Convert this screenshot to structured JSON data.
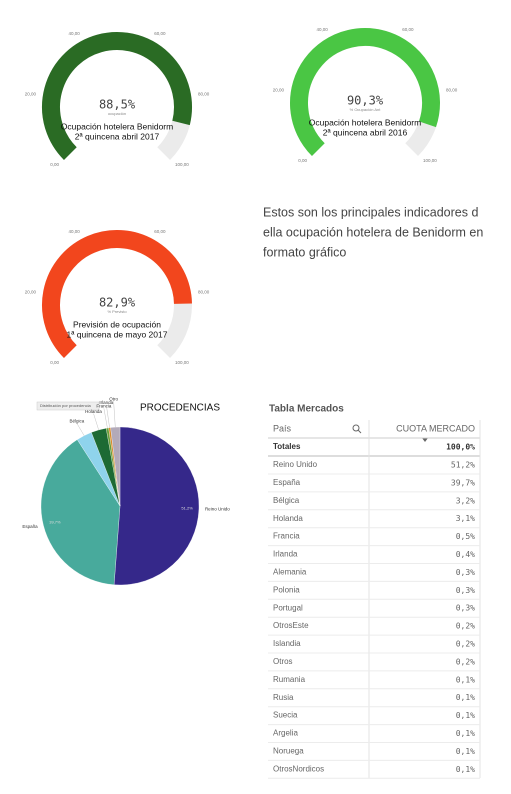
{
  "chart_data": [
    {
      "type": "gauge",
      "title": [
        "Ocupación hotelera Benidorm",
        "2ª quincena abril 2017"
      ],
      "subtitle": "ocupación",
      "value": 88.5,
      "value_label": "88,5%",
      "color": "#2a6b24",
      "track_color": "#ebebeb",
      "ylim": [
        0,
        100
      ],
      "yticks": [
        {
          "value": 0,
          "label": "0,00"
        },
        {
          "value": 20,
          "label": "20,00"
        },
        {
          "value": 40,
          "label": "40,00"
        },
        {
          "value": 60,
          "label": "60,00"
        },
        {
          "value": 80,
          "label": "80,00"
        },
        {
          "value": 100,
          "label": "100,00"
        }
      ]
    },
    {
      "type": "gauge",
      "title": [
        "Ocupación hotelera Benidorm",
        "2ª quincena abril 2016"
      ],
      "subtitle": "% Ocupación Ant",
      "value": 90.3,
      "value_label": "90,3%",
      "color": "#4ac644",
      "track_color": "#ebebeb",
      "ylim": [
        0,
        100
      ],
      "yticks": [
        {
          "value": 0,
          "label": "0,00"
        },
        {
          "value": 20,
          "label": "20,00"
        },
        {
          "value": 40,
          "label": "40,00"
        },
        {
          "value": 60,
          "label": "60,00"
        },
        {
          "value": 80,
          "label": "80,00"
        },
        {
          "value": 100,
          "label": "100,00"
        }
      ]
    },
    {
      "type": "gauge",
      "title": [
        "Previsión de ocupación",
        "1ª quincena de mayo 2017"
      ],
      "subtitle": "% Previsto",
      "value": 82.9,
      "value_label": "82,9%",
      "color": "#f2461d",
      "track_color": "#ebebeb",
      "ylim": [
        0,
        100
      ],
      "yticks": [
        {
          "value": 0,
          "label": "0,00"
        },
        {
          "value": 20,
          "label": "20,00"
        },
        {
          "value": 40,
          "label": "40,00"
        },
        {
          "value": 60,
          "label": "60,00"
        },
        {
          "value": 80,
          "label": "80,00"
        },
        {
          "value": 100,
          "label": "100,00"
        }
      ]
    },
    {
      "type": "pie",
      "title": "PROCEDENCIAS",
      "legend_button": "Distribución por procedencia",
      "categories": [
        "Reino Unido",
        "España",
        "Bélgica",
        "Holanda",
        "Francia",
        "Irlanda",
        "Otro"
      ],
      "values": [
        51.2,
        39.7,
        3.2,
        3.1,
        0.5,
        0.4,
        1.9
      ],
      "value_labels": [
        "51,2%",
        "39,7%",
        null,
        null,
        null,
        null,
        null
      ],
      "colors": [
        "#35288a",
        "#48aa9c",
        "#8fd3ec",
        "#1d6a34",
        "#6a9e3a",
        "#d98a2a",
        "#b3aab9"
      ]
    }
  ],
  "text": {
    "lines": [
      "Estos son los principales indicadores d",
      "ella ocupación hotelera de Benidorm en",
      "formato gráfico"
    ]
  },
  "table": {
    "title": "Tabla Mercados",
    "header": [
      "País",
      "CUOTA MERCADO"
    ],
    "totals": [
      "Totales",
      "100,0%"
    ],
    "rows": [
      [
        "Reino Unido",
        "51,2%"
      ],
      [
        "España",
        "39,7%"
      ],
      [
        "Bélgica",
        "3,2%"
      ],
      [
        "Holanda",
        "3,1%"
      ],
      [
        "Francia",
        "0,5%"
      ],
      [
        "Irlanda",
        "0,4%"
      ],
      [
        "Alemania",
        "0,3%"
      ],
      [
        "Polonia",
        "0,3%"
      ],
      [
        "Portugal",
        "0,3%"
      ],
      [
        "OtrosEste",
        "0,2%"
      ],
      [
        "Islandia",
        "0,2%"
      ],
      [
        "Otros",
        "0,2%"
      ],
      [
        "Rumania",
        "0,1%"
      ],
      [
        "Rusia",
        "0,1%"
      ],
      [
        "Suecia",
        "0,1%"
      ],
      [
        "Argelia",
        "0,1%"
      ],
      [
        "Noruega",
        "0,1%"
      ],
      [
        "OtrosNordicos",
        "0,1%"
      ]
    ]
  }
}
